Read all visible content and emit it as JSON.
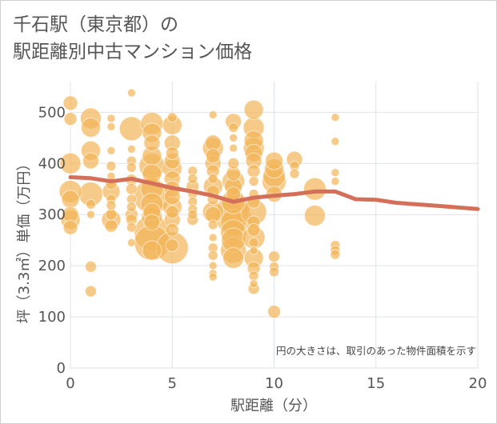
{
  "page": {
    "title_line1": "千石駅（東京都）の",
    "title_line2": "駅距離別中古マンション価格"
  },
  "chart_data": {
    "type": "scatter",
    "title": "千石駅（東京都）の駅距離別中古マンション価格",
    "xlabel": "駅距離（分）",
    "ylabel": "坪（3.3㎡）単価（万円）",
    "xlim": [
      0,
      20
    ],
    "ylim": [
      0,
      560
    ],
    "xticks": [
      0,
      5,
      10,
      15,
      20
    ],
    "yticks": [
      0,
      100,
      200,
      300,
      400,
      500
    ],
    "grid": true,
    "annotation": "円の大きさは、取引のあった物件面積を示す",
    "colors": {
      "bubble": "#f2b55a",
      "trend": "#d4705a",
      "grid": "#dde3ea"
    },
    "series": [
      {
        "type": "scatter",
        "points": [
          [
            0,
            518,
            9
          ],
          [
            0,
            487,
            8
          ],
          [
            0,
            400,
            13
          ],
          [
            0,
            345,
            14
          ],
          [
            0,
            330,
            11
          ],
          [
            0,
            300,
            10
          ],
          [
            0,
            290,
            12
          ],
          [
            0,
            275,
            9
          ],
          [
            1,
            488,
            13
          ],
          [
            1,
            470,
            12
          ],
          [
            1,
            425,
            12
          ],
          [
            1,
            405,
            10
          ],
          [
            1,
            340,
            15
          ],
          [
            1,
            320,
            6
          ],
          [
            1,
            300,
            5
          ],
          [
            1,
            198,
            7
          ],
          [
            1,
            150,
            7
          ],
          [
            2,
            488,
            5
          ],
          [
            2,
            472,
            5
          ],
          [
            2,
            425,
            5
          ],
          [
            2,
            395,
            6
          ],
          [
            2,
            375,
            5
          ],
          [
            2,
            360,
            7
          ],
          [
            2,
            345,
            11
          ],
          [
            2,
            330,
            6
          ],
          [
            2,
            318,
            6
          ],
          [
            2,
            300,
            7
          ],
          [
            2,
            290,
            12
          ],
          [
            2,
            278,
            8
          ],
          [
            3,
            538,
            5
          ],
          [
            3,
            468,
            15
          ],
          [
            3,
            428,
            5
          ],
          [
            3,
            405,
            6
          ],
          [
            3,
            392,
            6
          ],
          [
            3,
            368,
            7
          ],
          [
            3,
            350,
            7
          ],
          [
            3,
            330,
            6
          ],
          [
            3,
            315,
            6
          ],
          [
            3,
            300,
            8
          ],
          [
            3,
            290,
            7
          ],
          [
            3,
            275,
            6
          ],
          [
            3,
            245,
            5
          ],
          [
            4,
            478,
            14
          ],
          [
            4,
            460,
            12
          ],
          [
            4,
            440,
            10
          ],
          [
            4,
            415,
            12
          ],
          [
            4,
            395,
            16
          ],
          [
            4,
            380,
            12
          ],
          [
            4,
            350,
            14
          ],
          [
            4,
            335,
            22
          ],
          [
            4,
            320,
            14
          ],
          [
            4,
            305,
            11
          ],
          [
            4,
            295,
            13
          ],
          [
            4,
            285,
            10
          ],
          [
            4,
            265,
            22
          ],
          [
            4,
            245,
            22
          ],
          [
            4,
            230,
            12
          ],
          [
            5,
            490,
            6
          ],
          [
            5,
            475,
            12
          ],
          [
            5,
            440,
            10
          ],
          [
            5,
            420,
            8
          ],
          [
            5,
            405,
            10
          ],
          [
            5,
            390,
            12
          ],
          [
            5,
            370,
            10
          ],
          [
            5,
            350,
            10
          ],
          [
            5,
            335,
            10
          ],
          [
            5,
            315,
            12
          ],
          [
            5,
            305,
            8
          ],
          [
            5,
            290,
            10
          ],
          [
            5,
            270,
            8
          ],
          [
            5,
            240,
            8
          ],
          [
            5,
            235,
            20
          ],
          [
            6,
            385,
            6
          ],
          [
            6,
            370,
            6
          ],
          [
            6,
            355,
            8
          ],
          [
            6,
            340,
            6
          ],
          [
            6,
            325,
            6
          ],
          [
            6,
            310,
            6
          ],
          [
            6,
            300,
            6
          ],
          [
            6,
            290,
            7
          ],
          [
            7,
            495,
            5
          ],
          [
            7,
            440,
            10
          ],
          [
            7,
            430,
            13
          ],
          [
            7,
            415,
            9
          ],
          [
            7,
            400,
            10
          ],
          [
            7,
            385,
            8
          ],
          [
            7,
            370,
            6
          ],
          [
            7,
            355,
            12
          ],
          [
            7,
            345,
            8
          ],
          [
            7,
            330,
            7
          ],
          [
            7,
            305,
            13
          ],
          [
            7,
            300,
            10
          ],
          [
            7,
            280,
            6
          ],
          [
            7,
            255,
            5
          ],
          [
            7,
            235,
            6
          ],
          [
            7,
            220,
            6
          ],
          [
            7,
            200,
            5
          ],
          [
            7,
            185,
            5
          ],
          [
            7,
            178,
            5
          ],
          [
            8,
            482,
            10
          ],
          [
            8,
            470,
            6
          ],
          [
            8,
            450,
            5
          ],
          [
            8,
            430,
            5
          ],
          [
            8,
            400,
            7
          ],
          [
            8,
            380,
            9
          ],
          [
            8,
            365,
            14
          ],
          [
            8,
            355,
            11
          ],
          [
            8,
            340,
            9
          ],
          [
            8,
            325,
            15
          ],
          [
            8,
            310,
            20
          ],
          [
            8,
            295,
            22
          ],
          [
            8,
            285,
            16
          ],
          [
            8,
            265,
            16
          ],
          [
            8,
            250,
            15
          ],
          [
            8,
            230,
            16
          ],
          [
            8,
            215,
            13
          ],
          [
            9,
            505,
            12
          ],
          [
            9,
            470,
            13
          ],
          [
            9,
            445,
            12
          ],
          [
            9,
            430,
            13
          ],
          [
            9,
            420,
            11
          ],
          [
            9,
            405,
            10
          ],
          [
            9,
            385,
            8
          ],
          [
            9,
            365,
            6
          ],
          [
            9,
            340,
            6
          ],
          [
            9,
            325,
            8
          ],
          [
            9,
            305,
            16
          ],
          [
            9,
            285,
            8
          ],
          [
            9,
            270,
            8
          ],
          [
            9,
            255,
            14
          ],
          [
            9,
            245,
            6
          ],
          [
            9,
            230,
            5
          ],
          [
            9,
            215,
            12
          ],
          [
            9,
            195,
            8
          ],
          [
            9,
            180,
            6
          ],
          [
            9,
            165,
            5
          ],
          [
            9,
            155,
            7
          ],
          [
            10,
            405,
            11
          ],
          [
            10,
            390,
            12
          ],
          [
            10,
            375,
            14
          ],
          [
            10,
            365,
            15
          ],
          [
            10,
            340,
            10
          ],
          [
            10,
            218,
            7
          ],
          [
            10,
            198,
            6
          ],
          [
            10,
            188,
            6
          ],
          [
            10,
            110,
            8
          ],
          [
            11,
            408,
            10
          ],
          [
            11,
            395,
            6
          ],
          [
            11,
            380,
            6
          ],
          [
            12,
            350,
            14
          ],
          [
            12,
            298,
            13
          ],
          [
            13,
            490,
            5
          ],
          [
            13,
            443,
            5
          ],
          [
            13,
            382,
            5
          ],
          [
            13,
            365,
            5
          ],
          [
            13,
            240,
            6
          ],
          [
            13,
            230,
            6
          ],
          [
            13,
            222,
            6
          ]
        ]
      },
      {
        "type": "line",
        "points": [
          [
            0,
            373
          ],
          [
            1,
            371
          ],
          [
            2,
            365
          ],
          [
            3,
            370
          ],
          [
            4,
            361
          ],
          [
            5,
            352
          ],
          [
            6,
            345
          ],
          [
            7,
            337
          ],
          [
            8,
            325
          ],
          [
            9,
            333
          ],
          [
            10,
            337
          ],
          [
            11,
            340
          ],
          [
            12,
            345
          ],
          [
            13,
            345
          ],
          [
            14,
            330
          ],
          [
            15,
            329
          ],
          [
            16,
            323
          ],
          [
            17,
            320
          ],
          [
            18,
            317
          ],
          [
            19,
            314
          ],
          [
            20,
            311
          ]
        ]
      }
    ]
  }
}
